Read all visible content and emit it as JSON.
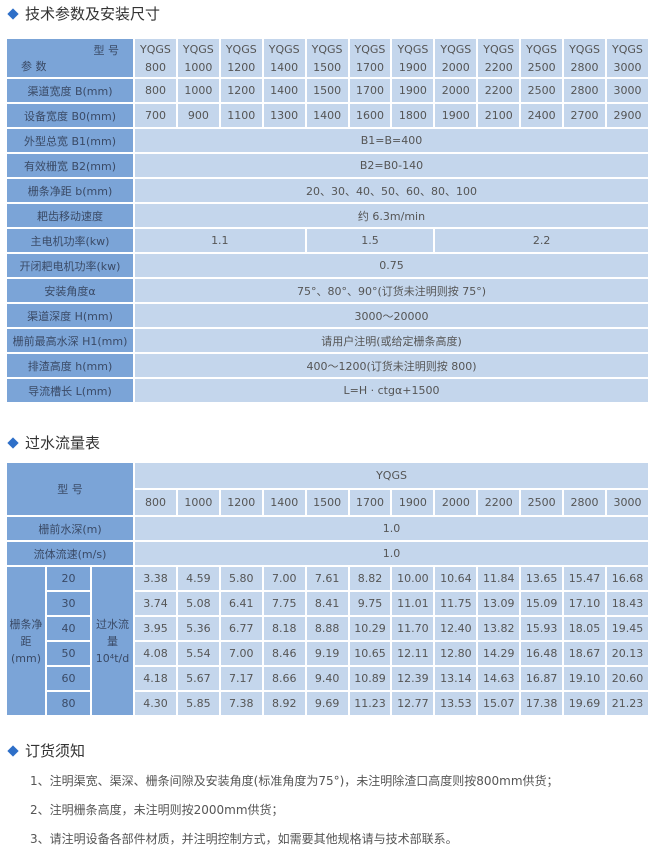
{
  "sections": {
    "spec": "技术参数及安装尺寸",
    "flow": "过水流量表",
    "order": "订货须知"
  },
  "spec": {
    "corner_top": "型 号",
    "corner_bottom": "参 数",
    "model_prefix": "YQGS",
    "models": [
      "800",
      "1000",
      "1200",
      "1400",
      "1500",
      "1700",
      "1900",
      "2000",
      "2200",
      "2500",
      "2800",
      "3000"
    ],
    "rows_full": [
      {
        "label": "渠道宽度 B(mm)",
        "values": [
          "800",
          "1000",
          "1200",
          "1400",
          "1500",
          "1700",
          "1900",
          "2000",
          "2200",
          "2500",
          "2800",
          "3000"
        ]
      },
      {
        "label": "设备宽度 B0(mm)",
        "values": [
          "700",
          "900",
          "1100",
          "1300",
          "1400",
          "1600",
          "1800",
          "1900",
          "2100",
          "2400",
          "2700",
          "2900"
        ]
      }
    ],
    "rows_span1": [
      {
        "label": "外型总宽 B1(mm)",
        "value": "B1=B=400"
      },
      {
        "label": "有效栅宽 B2(mm)",
        "value": "B2=B0-140"
      },
      {
        "label": "栅条净距 b(mm)",
        "value": "20、30、40、50、60、80、100"
      },
      {
        "label": "耙齿移动速度",
        "value": "约 6.3m/min"
      }
    ],
    "motor": {
      "label": "主电机功率(kw)",
      "values": [
        "1.1",
        "1.5",
        "2.2"
      ]
    },
    "rows_span2": [
      {
        "label": "开闭耙电机功率(kw)",
        "value": "0.75"
      },
      {
        "label": "安装角度α",
        "value": "75°、80°、90°(订货未注明则按 75°)"
      },
      {
        "label": "渠道深度 H(mm)",
        "value": "3000～20000"
      },
      {
        "label": "栅前最高水深 H1(mm)",
        "value": "请用户注明(或给定栅条高度)"
      },
      {
        "label": "排渣高度 h(mm)",
        "value": "400～1200(订货未注明则按 800)"
      },
      {
        "label": "导流槽长 L(mm)",
        "value": "L=H · ctgα+1500"
      }
    ]
  },
  "flow": {
    "model_label": "型 号",
    "model_prefix": "YQGS",
    "models": [
      "800",
      "1000",
      "1200",
      "1400",
      "1500",
      "1700",
      "1900",
      "2000",
      "2200",
      "2500",
      "2800",
      "3000"
    ],
    "depth": {
      "label": "栅前水深(m)",
      "value": "1.0"
    },
    "speed": {
      "label": "流体流速(m/s)",
      "value": "1.0"
    },
    "gap_label": "栅条净距(mm)",
    "flow_label": "过水流量10⁴t/d",
    "rows": [
      {
        "gap": "20",
        "values": [
          "3.38",
          "4.59",
          "5.80",
          "7.00",
          "7.61",
          "8.82",
          "10.00",
          "10.64",
          "11.84",
          "13.65",
          "15.47",
          "16.68"
        ]
      },
      {
        "gap": "30",
        "values": [
          "3.74",
          "5.08",
          "6.41",
          "7.75",
          "8.41",
          "9.75",
          "11.01",
          "11.75",
          "13.09",
          "15.09",
          "17.10",
          "18.43"
        ]
      },
      {
        "gap": "40",
        "values": [
          "3.95",
          "5.36",
          "6.77",
          "8.18",
          "8.88",
          "10.29",
          "11.70",
          "12.40",
          "13.82",
          "15.93",
          "18.05",
          "19.45"
        ]
      },
      {
        "gap": "50",
        "values": [
          "4.08",
          "5.54",
          "7.00",
          "8.46",
          "9.19",
          "10.65",
          "12.11",
          "12.80",
          "14.29",
          "16.48",
          "18.67",
          "20.13"
        ]
      },
      {
        "gap": "60",
        "values": [
          "4.18",
          "5.67",
          "7.17",
          "8.66",
          "9.40",
          "10.89",
          "12.39",
          "13.14",
          "14.63",
          "16.87",
          "19.10",
          "20.60"
        ]
      },
      {
        "gap": "80",
        "values": [
          "4.30",
          "5.85",
          "7.38",
          "8.92",
          "9.69",
          "11.23",
          "12.77",
          "13.53",
          "15.07",
          "17.38",
          "19.69",
          "21.23"
        ]
      }
    ]
  },
  "notes": [
    "1、注明渠宽、渠深、栅条间隙及安装角度(标准角度为75°)，未注明除渣口高度则按800mm供货；",
    "2、注明栅条高度，未注明则按2000mm供货；",
    "3、请注明设备各部件材质，并注明控制方式，如需要其他规格请与技术部联系。"
  ]
}
